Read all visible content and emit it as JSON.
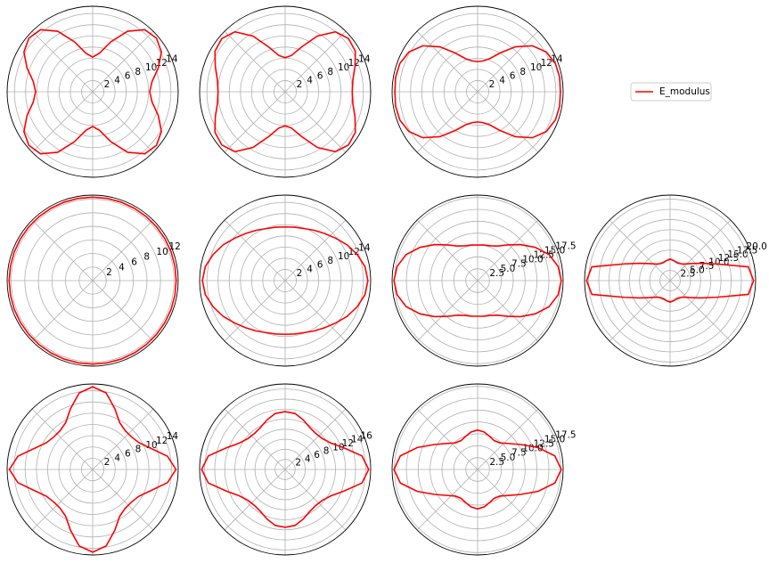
{
  "chart_data": [
    {
      "type": "polar",
      "x": [
        0,
        10,
        20,
        30,
        40,
        50,
        60,
        70,
        80,
        90,
        100,
        110,
        120,
        130,
        140,
        150,
        160,
        170,
        180,
        190,
        200,
        210,
        220,
        230,
        240,
        250,
        260,
        270,
        280,
        290,
        300,
        310,
        320,
        330,
        340,
        350
      ],
      "xlim": [
        0,
        360
      ],
      "xticks": [
        0,
        45,
        90,
        135,
        180,
        225,
        270,
        315
      ],
      "ylim": [
        0,
        15.3
      ],
      "yticks": [
        2,
        4,
        6,
        8,
        10,
        12,
        14
      ],
      "grid": true,
      "series": [
        {
          "name": "E_modulus",
          "color": "#ff0000",
          "values": [
            10.2,
            10.8,
            12.5,
            14.2,
            14.9,
            14.5,
            12.5,
            9.5,
            7,
            6.2,
            7,
            9.5,
            12.5,
            14.5,
            14.9,
            14.2,
            12.5,
            10.8,
            10.2,
            10.8,
            12.5,
            14.2,
            14.9,
            14.5,
            12.5,
            9.5,
            7,
            6.2,
            7,
            9.5,
            12.5,
            14.5,
            14.9,
            14.2,
            12.5,
            10.8
          ]
        }
      ]
    },
    {
      "type": "polar",
      "x": [
        0,
        10,
        20,
        30,
        40,
        50,
        60,
        70,
        80,
        90,
        100,
        110,
        120,
        130,
        140,
        150,
        160,
        170,
        180,
        190,
        200,
        210,
        220,
        230,
        240,
        250,
        260,
        270,
        280,
        290,
        300,
        310,
        320,
        330,
        340,
        350
      ],
      "xlim": [
        0,
        360
      ],
      "xticks": [
        0,
        45,
        90,
        135,
        180,
        225,
        270,
        315
      ],
      "ylim": [
        0,
        15.3
      ],
      "yticks": [
        2,
        4,
        6,
        8,
        10,
        12,
        14
      ],
      "grid": true,
      "series": [
        {
          "name": "E_modulus",
          "color": "#ff0000",
          "values": [
            12,
            12.3,
            13.3,
            14.5,
            14.8,
            14,
            11.5,
            8.5,
            6.6,
            6.1,
            6.6,
            8.5,
            11.5,
            14,
            14.8,
            14.5,
            13.3,
            12.3,
            12,
            12.3,
            13.3,
            14.5,
            14.8,
            14,
            11.5,
            8.5,
            6.6,
            6.1,
            6.6,
            8.5,
            11.5,
            14,
            14.8,
            14.5,
            13.3,
            12.3
          ]
        }
      ]
    },
    {
      "type": "polar",
      "x": [
        0,
        10,
        20,
        30,
        40,
        50,
        60,
        70,
        80,
        90,
        100,
        110,
        120,
        130,
        140,
        150,
        160,
        170,
        180,
        190,
        200,
        210,
        220,
        230,
        240,
        250,
        260,
        270,
        280,
        290,
        300,
        310,
        320,
        330,
        340,
        350
      ],
      "xlim": [
        0,
        360
      ],
      "xticks": [
        0,
        45,
        90,
        135,
        180,
        225,
        270,
        315
      ],
      "ylim": [
        0,
        15.3
      ],
      "yticks": [
        2,
        4,
        6,
        8,
        10,
        12,
        14
      ],
      "grid": true,
      "series": [
        {
          "name": "E_modulus",
          "color": "#ff0000",
          "values": [
            14.8,
            14.9,
            14.8,
            14.2,
            12.8,
            10.5,
            8,
            6.3,
            5.6,
            5.4,
            5.6,
            6.3,
            8,
            10.5,
            12.8,
            14.2,
            14.8,
            14.9,
            14.8,
            14.9,
            14.8,
            14.2,
            12.8,
            10.5,
            8,
            6.3,
            5.6,
            5.4,
            5.6,
            6.3,
            8,
            10.5,
            12.8,
            14.2,
            14.8,
            14.9
          ]
        }
      ]
    },
    {
      "type": "polar",
      "x": [
        0,
        10,
        20,
        30,
        40,
        50,
        60,
        70,
        80,
        90,
        100,
        110,
        120,
        130,
        140,
        150,
        160,
        170,
        180,
        190,
        200,
        210,
        220,
        230,
        240,
        250,
        260,
        270,
        280,
        290,
        300,
        310,
        320,
        330,
        340,
        350
      ],
      "xlim": [
        0,
        360
      ],
      "xticks": [
        0,
        45,
        90,
        135,
        180,
        225,
        270,
        315
      ],
      "ylim": [
        0,
        12.6
      ],
      "yticks": [
        2,
        4,
        6,
        8,
        10,
        12
      ],
      "grid": true,
      "series": [
        {
          "name": "E_modulus",
          "color": "#ff0000",
          "values": [
            12.3,
            12.3,
            12.3,
            12.3,
            12.3,
            12.3,
            12.3,
            12.3,
            12.3,
            12.3,
            12.3,
            12.3,
            12.3,
            12.3,
            12.3,
            12.3,
            12.3,
            12.3,
            12.3,
            12.3,
            12.3,
            12.3,
            12.3,
            12.3,
            12.3,
            12.3,
            12.3,
            12.3,
            12.3,
            12.3,
            12.3,
            12.3,
            12.3,
            12.3,
            12.3,
            12.3
          ]
        }
      ]
    },
    {
      "type": "polar",
      "x": [
        0,
        10,
        20,
        30,
        40,
        50,
        60,
        70,
        80,
        90,
        100,
        110,
        120,
        130,
        140,
        150,
        160,
        170,
        180,
        190,
        200,
        210,
        220,
        230,
        240,
        250,
        260,
        270,
        280,
        290,
        300,
        310,
        320,
        330,
        340,
        350
      ],
      "xlim": [
        0,
        360
      ],
      "xticks": [
        0,
        45,
        90,
        135,
        180,
        225,
        270,
        315
      ],
      "ylim": [
        0,
        15.3
      ],
      "yticks": [
        2,
        4,
        6,
        8,
        10,
        12,
        14
      ],
      "grid": true,
      "series": [
        {
          "name": "E_modulus",
          "color": "#ff0000",
          "values": [
            14.8,
            14.5,
            13.7,
            12.8,
            11.8,
            11,
            10.4,
            9.9,
            9.7,
            9.6,
            9.7,
            9.9,
            10.4,
            11,
            11.8,
            12.8,
            13.7,
            14.5,
            14.8,
            14.5,
            13.7,
            12.8,
            11.8,
            11,
            10.4,
            9.9,
            9.7,
            9.6,
            9.7,
            9.9,
            10.4,
            11,
            11.8,
            12.8,
            13.7,
            14.5
          ]
        }
      ]
    },
    {
      "type": "polar",
      "x": [
        0,
        10,
        20,
        30,
        40,
        50,
        60,
        70,
        80,
        90,
        100,
        110,
        120,
        130,
        140,
        150,
        160,
        170,
        180,
        190,
        200,
        210,
        220,
        230,
        240,
        250,
        260,
        270,
        280,
        290,
        300,
        310,
        320,
        330,
        340,
        350
      ],
      "xlim": [
        0,
        360
      ],
      "xticks": [
        0,
        45,
        90,
        135,
        180,
        225,
        270,
        315
      ],
      "ylim": [
        0,
        18
      ],
      "yticks": [
        2.5,
        {
          "value": 5,
          "label": "5.0"
        },
        7.5,
        {
          "value": 10,
          "label": "10.0"
        },
        12.5,
        {
          "value": 15,
          "label": "15.0"
        },
        17.5
      ],
      "grid": true,
      "series": [
        {
          "name": "E_modulus",
          "color": "#ff0000",
          "values": [
            17.6,
            17.2,
            16,
            14,
            11.8,
            9.8,
            8.4,
            7.8,
            7.6,
            7.5,
            7.6,
            7.8,
            8.4,
            9.8,
            11.8,
            14,
            16,
            17.2,
            17.6,
            17.2,
            16,
            14,
            11.8,
            9.8,
            8.4,
            7.8,
            7.6,
            7.5,
            7.6,
            7.8,
            8.4,
            9.8,
            11.8,
            14,
            16,
            17.2
          ]
        }
      ]
    },
    {
      "type": "polar",
      "x": [
        0,
        10,
        20,
        30,
        40,
        50,
        60,
        70,
        80,
        90,
        100,
        110,
        120,
        130,
        140,
        150,
        160,
        170,
        180,
        190,
        200,
        210,
        220,
        230,
        240,
        250,
        260,
        270,
        280,
        290,
        300,
        310,
        320,
        330,
        340,
        350
      ],
      "xlim": [
        0,
        360
      ],
      "xticks": [
        0,
        45,
        90,
        135,
        180,
        225,
        270,
        315
      ],
      "ylim": [
        0,
        21
      ],
      "yticks": [
        2.5,
        {
          "value": 5,
          "label": "5.0"
        },
        7.5,
        {
          "value": 10,
          "label": "10.0"
        },
        12.5,
        {
          "value": 15,
          "label": "15.0"
        },
        17.5,
        {
          "value": 20,
          "label": "20.0"
        }
      ],
      "grid": true,
      "series": [
        {
          "name": "E_modulus",
          "color": "#ff0000",
          "values": [
            20.5,
            19.5,
            12,
            8.5,
            6.5,
            5.3,
            4.8,
            4.7,
            5,
            5.3,
            5,
            4.7,
            4.8,
            5.3,
            6.5,
            8.5,
            12,
            19.5,
            20.5,
            19.5,
            12,
            8.5,
            6.5,
            5.3,
            4.8,
            4.7,
            5,
            5.3,
            5,
            4.7,
            4.8,
            5.3,
            6.5,
            8.5,
            12,
            19.5
          ]
        }
      ]
    },
    {
      "type": "polar",
      "x": [
        0,
        10,
        20,
        30,
        40,
        50,
        60,
        70,
        80,
        90,
        100,
        110,
        120,
        130,
        140,
        150,
        160,
        170,
        180,
        190,
        200,
        210,
        220,
        230,
        240,
        250,
        260,
        270,
        280,
        290,
        300,
        310,
        320,
        330,
        340,
        350
      ],
      "xlim": [
        0,
        360
      ],
      "xticks": [
        0,
        45,
        90,
        135,
        180,
        225,
        270,
        315
      ],
      "ylim": [
        0,
        15.2
      ],
      "yticks": [
        2,
        4,
        6,
        8,
        10,
        12,
        14
      ],
      "grid": true,
      "series": [
        {
          "name": "E_modulus",
          "color": "#ff0000",
          "values": [
            14.8,
            13.5,
            11,
            9.5,
            9,
            9,
            9.6,
            11.5,
            13.8,
            14.7,
            13.8,
            11.5,
            9.6,
            9,
            9,
            9.5,
            11,
            13.5,
            14.8,
            13.5,
            11,
            9.5,
            9,
            9,
            9.6,
            11.5,
            13.8,
            14.7,
            13.8,
            11.5,
            9.6,
            9,
            9,
            9.5,
            11,
            13.5
          ]
        }
      ]
    },
    {
      "type": "polar",
      "x": [
        0,
        10,
        20,
        30,
        40,
        50,
        60,
        70,
        80,
        90,
        100,
        110,
        120,
        130,
        140,
        150,
        160,
        170,
        180,
        190,
        200,
        210,
        220,
        230,
        240,
        250,
        260,
        270,
        280,
        290,
        300,
        310,
        320,
        330,
        340,
        350
      ],
      "xlim": [
        0,
        360
      ],
      "xticks": [
        0,
        45,
        90,
        135,
        180,
        225,
        270,
        315
      ],
      "ylim": [
        0,
        17
      ],
      "yticks": [
        2,
        4,
        6,
        8,
        10,
        12,
        14,
        16
      ],
      "grid": true,
      "series": [
        {
          "name": "E_modulus",
          "color": "#ff0000",
          "values": [
            16.6,
            15.5,
            12.5,
            10.5,
            9.6,
            9.4,
            9.7,
            10.5,
            11.3,
            11.5,
            11.3,
            10.5,
            9.7,
            9.4,
            9.6,
            10.5,
            12.5,
            15.5,
            16.6,
            15.5,
            12.5,
            10.5,
            9.6,
            9.4,
            9.7,
            10.5,
            11.3,
            11.5,
            11.3,
            10.5,
            9.7,
            9.4,
            9.6,
            10.5,
            12.5,
            15.5
          ]
        }
      ]
    },
    {
      "type": "polar",
      "x": [
        0,
        10,
        20,
        30,
        40,
        50,
        60,
        70,
        80,
        90,
        100,
        110,
        120,
        130,
        140,
        150,
        160,
        170,
        180,
        190,
        200,
        210,
        220,
        230,
        240,
        250,
        260,
        270,
        280,
        290,
        300,
        310,
        320,
        330,
        340,
        350
      ],
      "xlim": [
        0,
        360
      ],
      "xticks": [
        0,
        45,
        90,
        135,
        180,
        225,
        270,
        315
      ],
      "ylim": [
        0,
        18
      ],
      "yticks": [
        2.5,
        {
          "value": 5,
          "label": "5.0"
        },
        7.5,
        {
          "value": 10,
          "label": "10.0"
        },
        12.5,
        {
          "value": 15,
          "label": "15.0"
        },
        17.5
      ],
      "grid": true,
      "series": [
        {
          "name": "E_modulus",
          "color": "#ff0000",
          "values": [
            17.6,
            16.5,
            13.5,
            10.5,
            8.5,
            7.3,
            7,
            7.4,
            8,
            8.3,
            8,
            7.4,
            7,
            7.3,
            8.5,
            10.5,
            13.5,
            16.5,
            17.6,
            16.5,
            13.5,
            10.5,
            8.5,
            7.3,
            7,
            7.4,
            8,
            8.3,
            8,
            7.4,
            7,
            7.3,
            8.5,
            10.5,
            13.5,
            16.5
          ]
        }
      ]
    }
  ]
}
